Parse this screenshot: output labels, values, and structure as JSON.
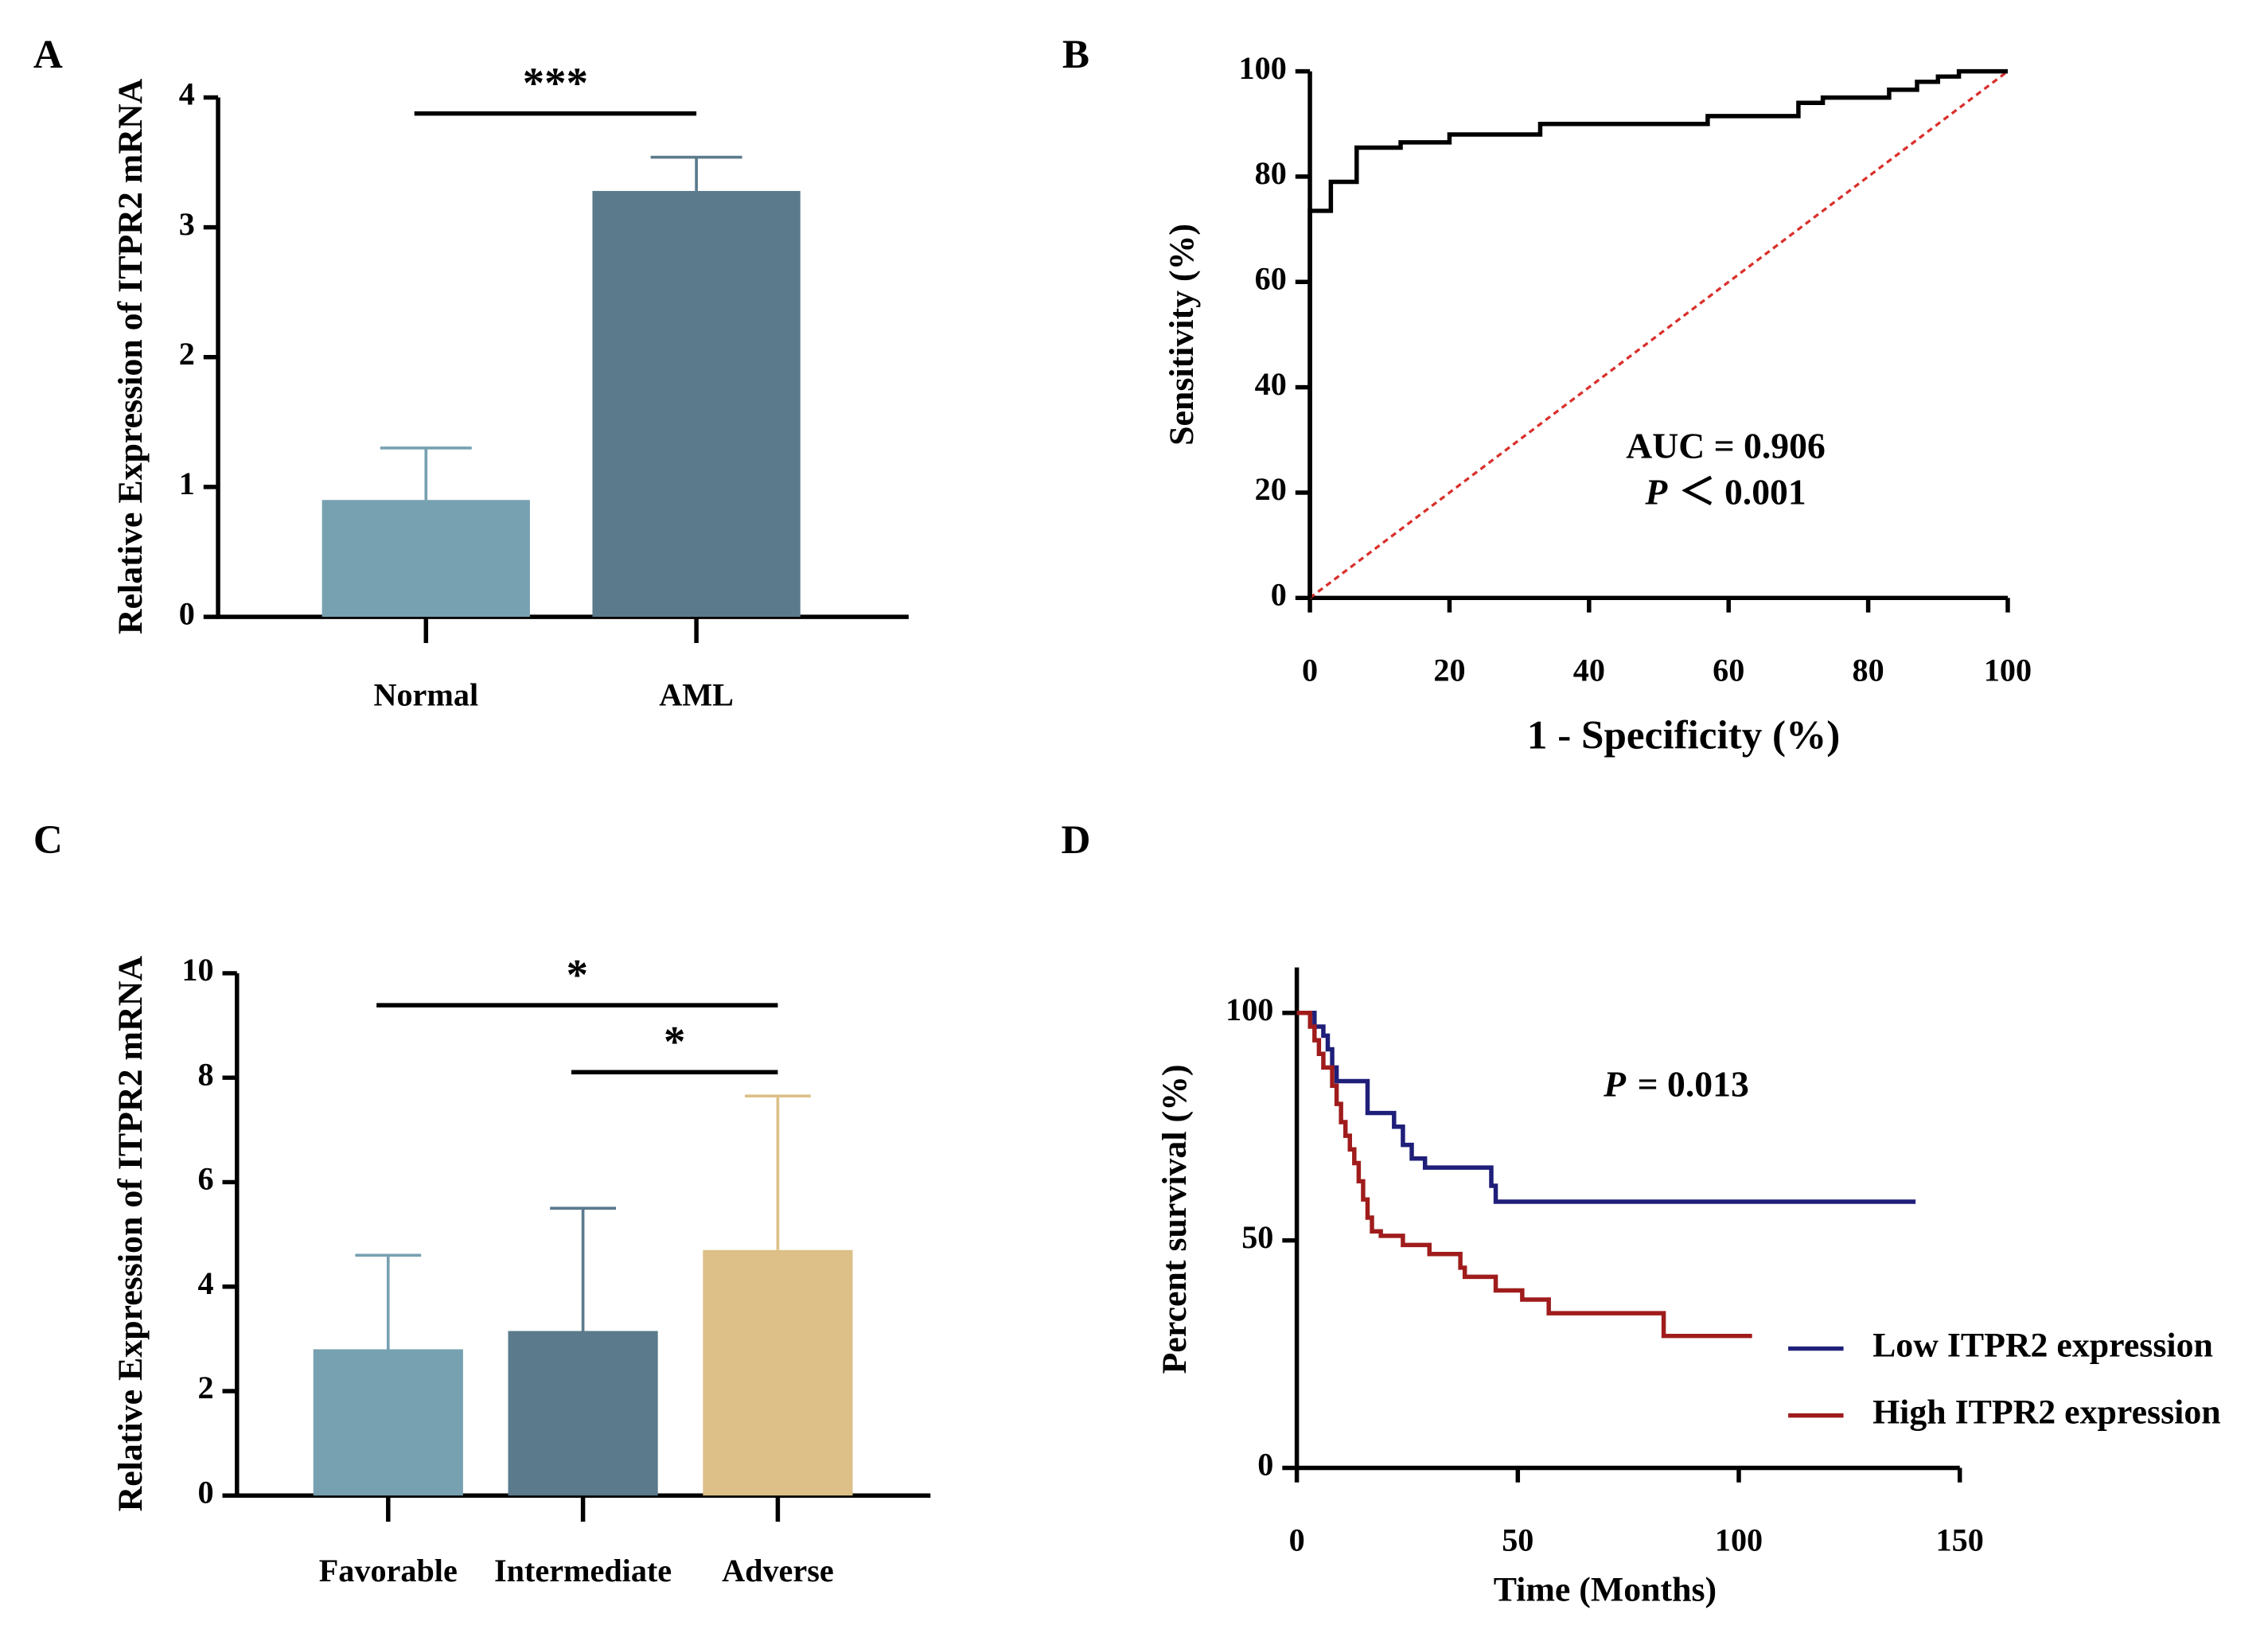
{
  "chart_data": [
    {
      "type": "bar",
      "panel_label": "A",
      "ylabel": "Relative Expression of ITPR2 mRNA",
      "categories": [
        "Normal",
        "AML"
      ],
      "values": [
        0.9,
        3.28
      ],
      "errors": [
        0.4,
        0.26
      ],
      "colors": [
        "#77a1b1",
        "#5b7a8c"
      ],
      "ylim": [
        0,
        4
      ],
      "yticks": [
        0,
        1,
        2,
        3,
        4
      ],
      "significance": [
        {
          "between": [
            "Normal",
            "AML"
          ],
          "label": "***"
        }
      ]
    },
    {
      "type": "line",
      "panel_label": "B",
      "xlabel": "1 - Specificity (%)",
      "ylabel": "Sensitivity (%)",
      "xlim": [
        0,
        100
      ],
      "ylim": [
        0,
        100
      ],
      "xticks": [
        0,
        20,
        40,
        60,
        80,
        100
      ],
      "yticks": [
        0,
        20,
        40,
        60,
        80,
        100
      ],
      "series": [
        {
          "color": "#000000",
          "x": [
            0,
            0,
            3,
            3,
            6.7,
            6.7,
            13,
            13,
            20,
            20,
            33,
            33,
            57,
            57,
            70,
            70,
            73.5,
            73.5,
            83,
            83,
            87,
            87,
            90,
            90,
            93,
            93,
            100
          ],
          "values": [
            0,
            73.5,
            73.5,
            79,
            79,
            85.5,
            85.5,
            86.5,
            86.5,
            88,
            88,
            90,
            90,
            91.5,
            91.5,
            94,
            94,
            95,
            95,
            96.5,
            96.5,
            98,
            98,
            99,
            99,
            100,
            100
          ]
        }
      ],
      "reference_line": {
        "x": [
          0,
          100
        ],
        "values": [
          0,
          100
        ],
        "color": "#d9302c"
      },
      "annotations": [
        "AUC = 0.906",
        {
          "italic": "P",
          "text": "＜ 0.001"
        }
      ]
    },
    {
      "type": "bar",
      "panel_label": "C",
      "ylabel": "Relative Expression of ITPR2 mRNA",
      "categories": [
        "Favorable",
        "Intermediate",
        "Adverse"
      ],
      "values": [
        2.8,
        3.15,
        4.7
      ],
      "errors": [
        1.8,
        2.35,
        2.95
      ],
      "colors": [
        "#77a1b1",
        "#5b7a8c",
        "#dcc087"
      ],
      "ylim": [
        0,
        10
      ],
      "yticks": [
        0,
        2,
        4,
        6,
        8,
        10
      ],
      "significance": [
        {
          "between": [
            "Favorable",
            "Adverse"
          ],
          "label": "*"
        },
        {
          "between": [
            "Intermediate",
            "Adverse"
          ],
          "label": "*"
        }
      ]
    },
    {
      "type": "line",
      "panel_label": "D",
      "xlabel": "Time (Months)",
      "ylabel": "Percent survival (%)",
      "xlim": [
        0,
        150
      ],
      "ylim": [
        0,
        110
      ],
      "xticks": [
        0,
        50,
        100,
        150
      ],
      "yticks": [
        0,
        50,
        100
      ],
      "series": [
        {
          "name": "Low ITPR2 expression",
          "color": "#1f1f7a",
          "x": [
            0,
            4,
            4,
            6,
            6,
            7,
            7,
            8,
            8,
            9,
            9,
            16,
            16,
            22,
            22,
            24,
            24,
            26,
            26,
            29,
            29,
            44,
            44,
            45,
            45,
            140
          ],
          "values": [
            100,
            100,
            97,
            97,
            95,
            95,
            92,
            92,
            88,
            88,
            85,
            85,
            78,
            78,
            75,
            75,
            71,
            71,
            68,
            68,
            66,
            66,
            62,
            62,
            58.5,
            58.5
          ]
        },
        {
          "name": "High ITPR2 expression",
          "color": "#a01c1c",
          "x": [
            0,
            3,
            3,
            4,
            4,
            5,
            5,
            6,
            6,
            8,
            8,
            9,
            9,
            10,
            10,
            11,
            11,
            12,
            12,
            13,
            13,
            14,
            14,
            15,
            15,
            16,
            16,
            17,
            17,
            19,
            19,
            24,
            24,
            30,
            30,
            37,
            37,
            38,
            38,
            45,
            45,
            51,
            51,
            57,
            57,
            83,
            83,
            103
          ],
          "values": [
            100,
            100,
            97,
            97,
            94,
            94,
            91,
            91,
            88,
            88,
            84,
            84,
            80,
            80,
            76,
            76,
            73,
            73,
            70,
            70,
            67,
            67,
            63,
            63,
            59,
            59,
            55,
            55,
            52,
            52,
            51,
            51,
            49,
            49,
            47,
            47,
            44,
            44,
            42,
            42,
            39,
            39,
            37,
            37,
            34,
            34,
            29,
            29
          ]
        }
      ],
      "annotations": [
        {
          "italic": "P",
          "text": "= 0.013"
        }
      ]
    }
  ]
}
